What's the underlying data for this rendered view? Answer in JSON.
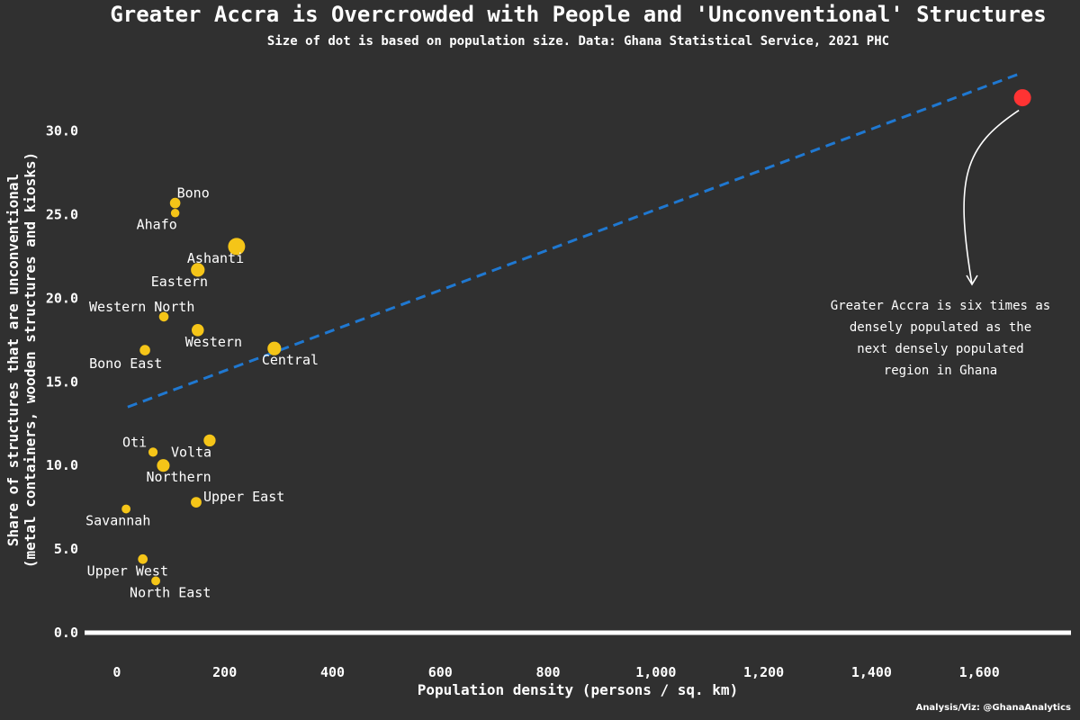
{
  "chart_data": {
    "type": "scatter",
    "title": "Greater Accra is Overcrowded with People and 'Unconventional' Structures",
    "subtitle": "Size of dot is based on population size. Data: Ghana Statistical Service, 2021 PHC",
    "xlabel": "Population density (persons / sq. km)",
    "ylabel_line1": "Share of structures that are unconventional",
    "ylabel_line2": "(metal containers, wooden structures and kiosks)",
    "xlim": [
      -60,
      1770
    ],
    "ylim": [
      0,
      33
    ],
    "x_ticks": [
      0,
      200,
      400,
      600,
      800,
      1000,
      1200,
      1400,
      1600
    ],
    "x_tick_labels": [
      "0",
      "200",
      "400",
      "600",
      "800",
      "1,000",
      "1,200",
      "1,400",
      "1,600"
    ],
    "y_ticks": [
      0,
      5,
      10,
      15,
      20,
      25,
      30
    ],
    "y_tick_labels": [
      "0.0",
      "5.0",
      "10.0",
      "15.0",
      "20.0",
      "25.0",
      "30.0"
    ],
    "trendline": {
      "x": [
        20,
        1680
      ],
      "y": [
        13.5,
        33.5
      ],
      "color": "#1f78d1",
      "style": "dashed"
    },
    "point_color": "#f5c518",
    "highlight_color": "#ff3333",
    "points": [
      {
        "name": "Greater Accra",
        "x": 1680,
        "y": 32.0,
        "size": 5.45,
        "highlight": true,
        "show_label": false
      },
      {
        "name": "Ashanti",
        "x": 222,
        "y": 23.1,
        "size": 5.44,
        "label_dx": -55,
        "label_dy": 18
      },
      {
        "name": "Bono",
        "x": 108,
        "y": 25.7,
        "size": 1.21,
        "label_dx": 2,
        "label_dy": -6
      },
      {
        "name": "Ahafo",
        "x": 108,
        "y": 25.1,
        "size": 0.56,
        "label_dx": -43,
        "label_dy": 18
      },
      {
        "name": "Eastern",
        "x": 150,
        "y": 21.7,
        "size": 2.93,
        "label_dx": -52,
        "label_dy": 18
      },
      {
        "name": "Western North",
        "x": 87,
        "y": 18.9,
        "size": 0.88,
        "label_dx": -83,
        "label_dy": -6
      },
      {
        "name": "Western",
        "x": 150,
        "y": 18.1,
        "size": 2.06,
        "label_dx": -14,
        "label_dy": 18
      },
      {
        "name": "Central",
        "x": 292,
        "y": 17.0,
        "size": 2.86,
        "label_dx": -14,
        "label_dy": 18
      },
      {
        "name": "Bono East",
        "x": 52,
        "y": 16.9,
        "size": 1.2,
        "label_dx": -62,
        "label_dy": 20
      },
      {
        "name": "Volta",
        "x": 172,
        "y": 11.5,
        "size": 1.91,
        "label_dx": -43,
        "label_dy": 18
      },
      {
        "name": "Oti",
        "x": 67,
        "y": 10.8,
        "size": 0.75,
        "label_dx": -34,
        "label_dy": -6
      },
      {
        "name": "Northern",
        "x": 86,
        "y": 10.0,
        "size": 2.31,
        "label_dx": -19,
        "label_dy": 18
      },
      {
        "name": "Upper East",
        "x": 147,
        "y": 7.8,
        "size": 1.3,
        "label_dx": 8,
        "label_dy": -1
      },
      {
        "name": "Savannah",
        "x": 17,
        "y": 7.4,
        "size": 0.65,
        "label_dx": -45,
        "label_dy": 18
      },
      {
        "name": "Upper West",
        "x": 48,
        "y": 4.4,
        "size": 0.9,
        "label_dx": -62,
        "label_dy": 18
      },
      {
        "name": "North East",
        "x": 72,
        "y": 3.1,
        "size": 0.66,
        "label_dx": -29,
        "label_dy": 18
      }
    ]
  },
  "annotation": {
    "lines": [
      "Greater Accra is six times as",
      "densely populated as the",
      "next densely populated",
      "region in Ghana"
    ]
  },
  "credit": "Analysis/Viz: @GhanaAnalytics"
}
